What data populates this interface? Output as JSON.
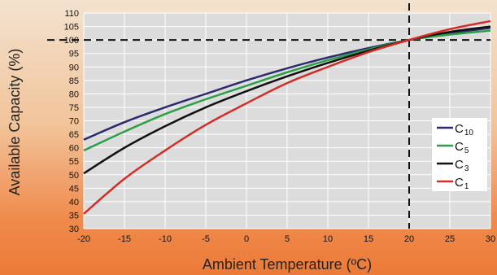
{
  "chart_data": {
    "type": "line",
    "xlabel": "Ambient Temperature (ºC)",
    "ylabel": "Available Capacity (%)",
    "xlim": [
      -20,
      30
    ],
    "ylim": [
      30,
      110
    ],
    "x_ticks": [
      -20,
      -15,
      -10,
      -5,
      0,
      5,
      10,
      15,
      20,
      25,
      30
    ],
    "y_ticks": [
      30,
      35,
      40,
      45,
      50,
      55,
      60,
      65,
      70,
      75,
      80,
      85,
      90,
      95,
      100,
      105,
      110
    ],
    "grid": true,
    "legend_position": "right",
    "reference_lines": {
      "x": 20,
      "y": 100,
      "style": "dashed"
    },
    "series": [
      {
        "name": "C10",
        "label_main": "C",
        "label_sub": "10",
        "color": "#2b2a6e",
        "x": [
          -20,
          -15,
          -10,
          -5,
          0,
          5,
          10,
          15,
          20,
          25,
          30
        ],
        "y": [
          63,
          69.5,
          75,
          80,
          85,
          89.5,
          93.5,
          97,
          100,
          102.5,
          104.5
        ]
      },
      {
        "name": "C5",
        "label_main": "C",
        "label_sub": "5",
        "color": "#2e9e47",
        "x": [
          -20,
          -15,
          -10,
          -5,
          0,
          5,
          10,
          15,
          20,
          25,
          30
        ],
        "y": [
          59,
          66,
          72.5,
          78,
          83,
          88,
          92.5,
          96.5,
          100,
          102,
          103.5
        ]
      },
      {
        "name": "C3",
        "label_main": "C",
        "label_sub": "3",
        "color": "#111111",
        "x": [
          -20,
          -15,
          -10,
          -5,
          0,
          5,
          10,
          15,
          20,
          25,
          30
        ],
        "y": [
          50.5,
          60,
          68,
          75,
          81,
          86.5,
          91.5,
          96,
          100,
          103,
          105
        ]
      },
      {
        "name": "C1",
        "label_main": "C",
        "label_sub": "1",
        "color": "#d42c27",
        "x": [
          -20,
          -15,
          -10,
          -5,
          0,
          5,
          10,
          15,
          20,
          25,
          30
        ],
        "y": [
          35.5,
          48.5,
          59,
          68.5,
          76.5,
          84,
          90,
          95.5,
          100,
          104,
          107
        ]
      }
    ]
  }
}
